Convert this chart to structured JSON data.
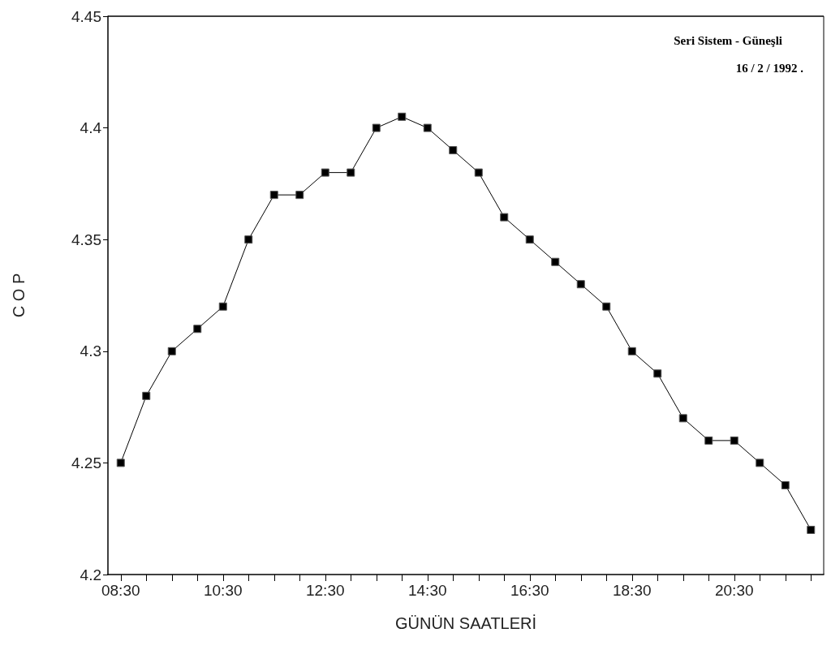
{
  "chart_data": {
    "type": "line",
    "xlabel": "GÜNÜN SAATLERİ",
    "ylabel": "C O P",
    "annotations": [
      "Seri Sistem - Güneşli",
      "16 / 2 / 1992 ."
    ],
    "x": [
      8.5,
      9,
      9.5,
      10,
      10.5,
      11,
      11.5,
      12,
      12.5,
      13,
      13.5,
      14,
      14.5,
      15,
      15.5,
      16,
      16.5,
      17,
      17.5,
      18,
      18.5,
      19,
      19.5,
      20,
      20.5,
      21,
      21.5,
      22
    ],
    "series": [
      {
        "color": "#000000",
        "values": [
          4.25,
          4.28,
          4.3,
          4.31,
          4.32,
          4.35,
          4.37,
          4.37,
          4.38,
          4.38,
          4.4,
          4.405,
          4.4,
          4.39,
          4.38,
          4.36,
          4.35,
          4.34,
          4.33,
          4.32,
          4.3,
          4.29,
          4.27,
          4.26,
          4.26,
          4.25,
          4.24,
          4.22
        ]
      }
    ],
    "xlim": [
      8.25,
      22.25
    ],
    "xticks": [
      {
        "value": 8.5,
        "label": "08:30"
      },
      {
        "value": 9,
        "label": null
      },
      {
        "value": 9.5,
        "label": null
      },
      {
        "value": 10,
        "label": null
      },
      {
        "value": 10.5,
        "label": "10:30"
      },
      {
        "value": 11,
        "label": null
      },
      {
        "value": 11.5,
        "label": null
      },
      {
        "value": 12,
        "label": null
      },
      {
        "value": 12.5,
        "label": "12:30"
      },
      {
        "value": 13,
        "label": null
      },
      {
        "value": 13.5,
        "label": null
      },
      {
        "value": 14,
        "label": null
      },
      {
        "value": 14.5,
        "label": "14:30"
      },
      {
        "value": 15,
        "label": null
      },
      {
        "value": 15.5,
        "label": null
      },
      {
        "value": 16,
        "label": null
      },
      {
        "value": 16.5,
        "label": "16:30"
      },
      {
        "value": 17,
        "label": null
      },
      {
        "value": 17.5,
        "label": null
      },
      {
        "value": 18,
        "label": null
      },
      {
        "value": 18.5,
        "label": "18:30"
      },
      {
        "value": 19,
        "label": null
      },
      {
        "value": 19.5,
        "label": null
      },
      {
        "value": 20,
        "label": null
      },
      {
        "value": 20.5,
        "label": "20:30"
      },
      {
        "value": 21,
        "label": null
      },
      {
        "value": 21.5,
        "label": null
      },
      {
        "value": 22,
        "label": null
      }
    ],
    "ylim": [
      4.2,
      4.45
    ],
    "yticks": [
      4.2,
      4.25,
      4.3,
      4.35,
      4.4,
      4.45
    ],
    "grid": false,
    "marker": "square",
    "line_style": "solid"
  }
}
